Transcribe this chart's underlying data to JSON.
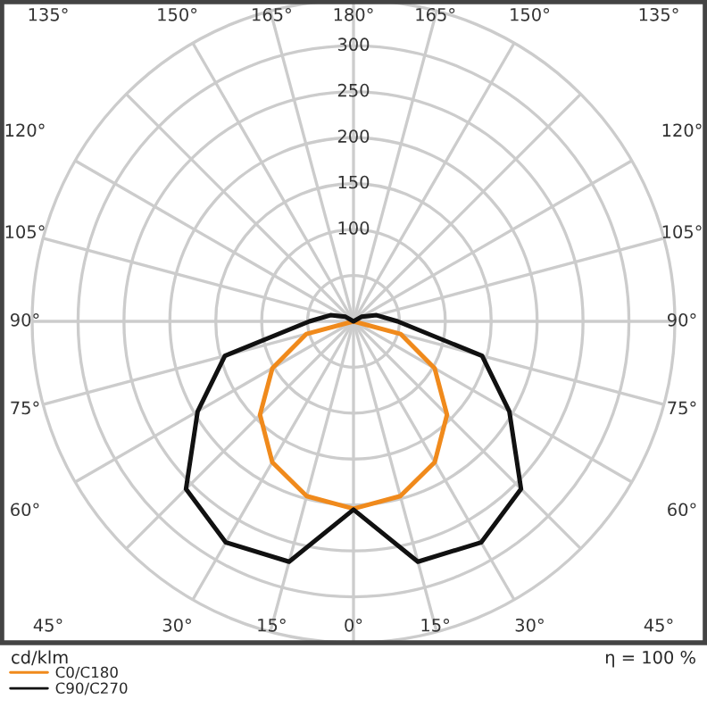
{
  "chart_data": {
    "type": "radar",
    "categories": [
      "180°",
      "165°",
      "150°",
      "135°",
      "120°",
      "105°",
      "90°",
      "75°",
      "60°",
      "45°",
      "30°",
      "15°",
      "0°",
      "15°",
      "30°",
      "45°",
      "60°",
      "75°",
      "90°",
      "105°",
      "120°",
      "135°",
      "150°",
      "165°"
    ],
    "series": [
      {
        "name": "C0/C180",
        "color": "#f08a1c",
        "values": [
          0,
          0,
          0,
          0,
          0,
          0,
          0,
          53,
          102,
          144,
          177,
          197,
          204,
          197,
          177,
          144,
          102,
          53,
          0,
          0,
          0,
          0,
          0,
          0
        ]
      },
      {
        "name": "C90/C270",
        "color": "#111111",
        "values": [
          0,
          0,
          0,
          0,
          10,
          26,
          48,
          145,
          196,
          258,
          278,
          271,
          205,
          271,
          278,
          258,
          196,
          145,
          48,
          26,
          10,
          0,
          0,
          0
        ]
      }
    ],
    "ylim": [
      0,
      350
    ],
    "yticks": [
      100,
      150,
      200,
      250,
      300
    ],
    "grid": true,
    "legend": "bottom left",
    "annotations": [
      "cd/klm",
      "η = 100 %"
    ]
  }
}
